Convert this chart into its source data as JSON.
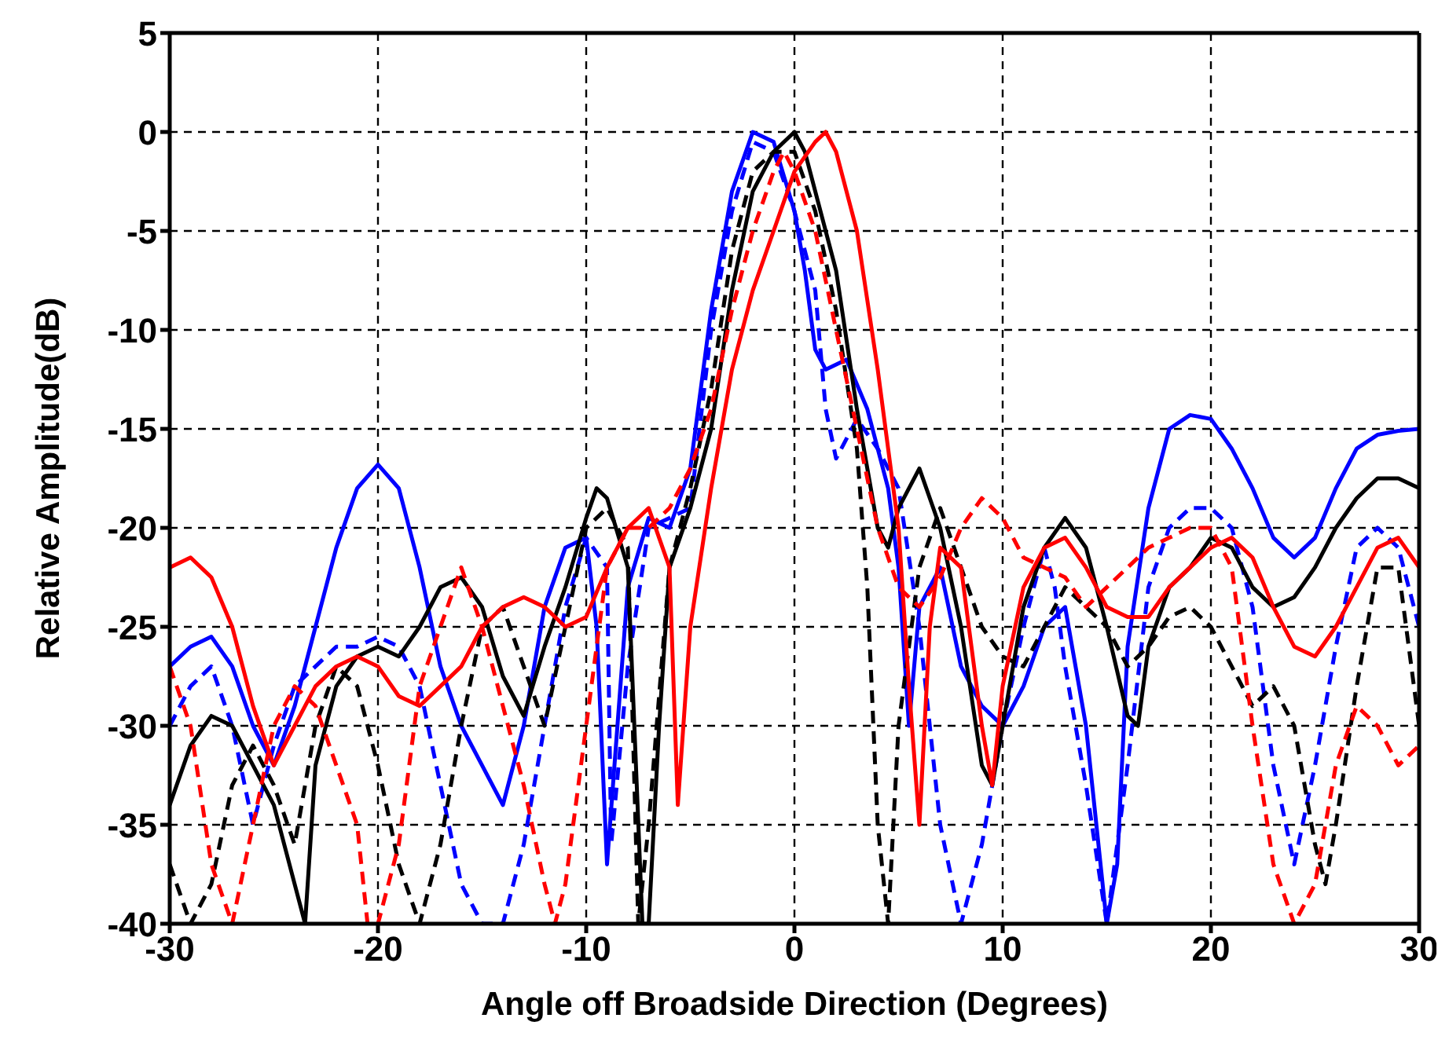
{
  "chart_data": {
    "type": "line",
    "xlabel": "Angle off Broadside Direction (Degrees)",
    "ylabel": "Relative Amplitude(dB)",
    "xlim": [
      -30,
      30
    ],
    "xticks": [
      -30,
      -20,
      -10,
      0,
      10,
      20,
      30
    ],
    "ylim": [
      -40,
      5
    ],
    "yticks": [
      -40,
      -35,
      -30,
      -25,
      -20,
      -15,
      -10,
      -5,
      0,
      5
    ],
    "grid": true,
    "marker": "none",
    "series": [
      {
        "color": "#0000ff",
        "line_style": "solid",
        "x": [
          -30,
          -29,
          -28,
          -27,
          -26,
          -25,
          -24,
          -23,
          -22,
          -21,
          -20,
          -19,
          -18,
          -17,
          -16,
          -15,
          -14,
          -13,
          -12,
          -11,
          -10,
          -9.5,
          -9,
          -8.5,
          -8,
          -7,
          -6,
          -5,
          -4,
          -3,
          -2,
          -1,
          0,
          0.5,
          1,
          1.5,
          2.5,
          3.5,
          4.5,
          5,
          5.5,
          6,
          7,
          8,
          9,
          10,
          11,
          12,
          13,
          14,
          15,
          15.5,
          16,
          17,
          18,
          19,
          20,
          21,
          22,
          23,
          24,
          25,
          26,
          27,
          28,
          29,
          30
        ],
        "values": [
          -27,
          -26,
          -25.5,
          -27,
          -30,
          -32,
          -29,
          -25,
          -21,
          -18,
          -16.8,
          -18,
          -22,
          -27,
          -30,
          -32,
          -34,
          -30,
          -24,
          -21,
          -20.5,
          -25,
          -37,
          -30,
          -23,
          -19.5,
          -20,
          -17,
          -9,
          -3,
          0,
          -0.5,
          -4,
          -7,
          -11,
          -12,
          -11.5,
          -14,
          -18,
          -22,
          -30,
          -24,
          -22,
          -27,
          -29,
          -30,
          -28,
          -25,
          -24,
          -30,
          -40,
          -37,
          -26,
          -19,
          -15,
          -14.3,
          -14.5,
          -16,
          -18,
          -20.5,
          -21.5,
          -20.5,
          -18,
          -16,
          -15.3,
          -15.1,
          -15
        ]
      },
      {
        "color": "#0000ff",
        "line_style": "dashed",
        "x": [
          -30,
          -29,
          -28,
          -27,
          -26,
          -25,
          -24,
          -23,
          -22,
          -21,
          -20,
          -19,
          -18,
          -17,
          -16,
          -15,
          -14,
          -13,
          -12,
          -11,
          -10,
          -9,
          -8.8,
          -8,
          -7,
          -6,
          -5,
          -4,
          -3,
          -2,
          -1,
          -0.5,
          0,
          1,
          1.5,
          2,
          3,
          4,
          5,
          6,
          7,
          8,
          9,
          10,
          11,
          12,
          12.5,
          13,
          14,
          15,
          16,
          17,
          18,
          19,
          20,
          21,
          22,
          23,
          24,
          25,
          26,
          27,
          28,
          29,
          30
        ],
        "values": [
          -30,
          -28,
          -27,
          -30,
          -35,
          -31,
          -28,
          -27,
          -26,
          -26,
          -25.5,
          -26,
          -28,
          -33,
          -38,
          -40,
          -40,
          -36,
          -30,
          -24,
          -20.5,
          -22,
          -36,
          -27,
          -20,
          -19.5,
          -19,
          -10,
          -4,
          -0.5,
          -1,
          -2.5,
          -4,
          -8,
          -14,
          -16.5,
          -14.5,
          -16,
          -18,
          -25,
          -35,
          -40,
          -36,
          -30,
          -25,
          -21,
          -23,
          -27,
          -33,
          -40,
          -32,
          -23,
          -20,
          -19,
          -19,
          -20,
          -24,
          -32,
          -37,
          -32,
          -26,
          -21,
          -20,
          -21,
          -25
        ]
      },
      {
        "color": "#000000",
        "line_style": "solid",
        "x": [
          -30,
          -29,
          -28,
          -27,
          -26,
          -25,
          -24,
          -23.5,
          -23,
          -22,
          -21,
          -20,
          -19,
          -18,
          -17,
          -16,
          -15,
          -14,
          -13,
          -12,
          -11,
          -10,
          -9.5,
          -9,
          -8,
          -7.3,
          -7,
          -6.5,
          -6,
          -5,
          -4,
          -3,
          -2,
          -1,
          0,
          0.5,
          1,
          2,
          3,
          4,
          4.5,
          5,
          6,
          7,
          8,
          9,
          9.5,
          10,
          11,
          12,
          13,
          14,
          15,
          16,
          16.5,
          17,
          18,
          19,
          20,
          21,
          22,
          23,
          24,
          25,
          26,
          27,
          28,
          29,
          30
        ],
        "values": [
          -34,
          -31,
          -29.5,
          -30,
          -32,
          -34,
          -38,
          -40,
          -32,
          -28,
          -26.5,
          -26,
          -26.5,
          -25,
          -23,
          -22.5,
          -24,
          -27.5,
          -29.5,
          -26,
          -23,
          -19.5,
          -18,
          -18.5,
          -22,
          -40,
          -40,
          -30,
          -22,
          -19,
          -15,
          -8,
          -3,
          -1,
          0,
          -1,
          -3,
          -7,
          -14,
          -20,
          -21,
          -19,
          -17,
          -20,
          -25,
          -32,
          -33,
          -30,
          -24,
          -21,
          -19.5,
          -21,
          -25,
          -29.5,
          -30,
          -26,
          -23,
          -22,
          -20.5,
          -21,
          -23,
          -24,
          -23.5,
          -22,
          -20,
          -18.5,
          -17.5,
          -17.5,
          -18
        ]
      },
      {
        "color": "#000000",
        "line_style": "dashed",
        "x": [
          -30,
          -29,
          -28,
          -27,
          -26,
          -25,
          -24,
          -23,
          -22,
          -21,
          -20,
          -19,
          -18,
          -17,
          -16,
          -15,
          -14,
          -13,
          -12,
          -11,
          -10,
          -9,
          -8,
          -7.5,
          -7,
          -6,
          -5,
          -4,
          -3,
          -2,
          -1,
          0,
          1,
          2,
          3,
          3.5,
          4,
          4.5,
          5,
          6,
          7,
          8,
          9,
          10,
          11,
          12,
          13,
          14,
          15,
          16,
          17,
          18,
          19,
          20,
          21,
          22,
          23,
          24,
          25,
          25.5,
          26,
          27,
          28,
          29,
          30
        ],
        "values": [
          -37,
          -40,
          -38,
          -33,
          -31,
          -33,
          -36,
          -30,
          -27,
          -28,
          -32,
          -37,
          -40,
          -36,
          -30,
          -25,
          -24,
          -27,
          -30,
          -25,
          -20,
          -19,
          -21,
          -40,
          -35,
          -22,
          -18,
          -13,
          -6,
          -2,
          -1,
          -1,
          -4,
          -9,
          -16,
          -23,
          -35,
          -40,
          -30,
          -22,
          -19,
          -22,
          -25,
          -26.5,
          -27,
          -25,
          -23,
          -24,
          -25,
          -27,
          -26,
          -24.5,
          -24,
          -25,
          -27,
          -29,
          -28,
          -30,
          -36,
          -38,
          -35,
          -28,
          -22,
          -22,
          -30
        ]
      },
      {
        "color": "#ff0000",
        "line_style": "solid",
        "x": [
          -30,
          -29,
          -28,
          -27,
          -26,
          -25,
          -24,
          -23,
          -22,
          -21,
          -20,
          -19,
          -18,
          -17,
          -16,
          -15,
          -14,
          -13,
          -12,
          -11,
          -10,
          -9,
          -8,
          -7,
          -6,
          -5.6,
          -5,
          -4,
          -3,
          -2,
          -1,
          0,
          1,
          1.5,
          2,
          3,
          4,
          5,
          5.5,
          6,
          6.5,
          7,
          8,
          9,
          9.5,
          10,
          11,
          12,
          13,
          14,
          15,
          16,
          17,
          18,
          19,
          20,
          21,
          22,
          23,
          24,
          25,
          26,
          27,
          28,
          29,
          30
        ],
        "values": [
          -22,
          -21.5,
          -22.5,
          -25,
          -29,
          -32,
          -30,
          -28,
          -27,
          -26.5,
          -27,
          -28.5,
          -29,
          -28,
          -27,
          -25,
          -24,
          -23.5,
          -24,
          -25,
          -24.5,
          -22,
          -20,
          -19,
          -22,
          -34,
          -25,
          -18,
          -12,
          -8,
          -5,
          -2,
          -0.5,
          0,
          -1,
          -5,
          -12,
          -20,
          -28,
          -35,
          -25,
          -21,
          -22,
          -30,
          -33,
          -28,
          -23,
          -21,
          -20.5,
          -22,
          -24,
          -24.5,
          -24.5,
          -23,
          -22,
          -21,
          -20.5,
          -21.5,
          -24,
          -26,
          -26.5,
          -25,
          -23,
          -21,
          -20.5,
          -22
        ]
      },
      {
        "color": "#ff0000",
        "line_style": "dashed",
        "x": [
          -30,
          -29,
          -28,
          -27,
          -26,
          -25,
          -24,
          -23,
          -22,
          -21,
          -20.5,
          -20,
          -19,
          -18,
          -17,
          -16,
          -15,
          -14,
          -13,
          -12,
          -11.5,
          -11,
          -10,
          -9,
          -8,
          -7,
          -6,
          -5,
          -4,
          -3,
          -2,
          -1,
          -0.5,
          0,
          1,
          2,
          3,
          4,
          5,
          6,
          7,
          8,
          9,
          10,
          11,
          12,
          13,
          14,
          15,
          16,
          17,
          18,
          19,
          20,
          21,
          22,
          23,
          24,
          25,
          26,
          27,
          28,
          29,
          30
        ],
        "values": [
          -27,
          -30,
          -37,
          -40,
          -35,
          -30,
          -28,
          -29,
          -32,
          -35,
          -40,
          -40,
          -36,
          -28,
          -25,
          -22,
          -25,
          -29,
          -33,
          -38,
          -40,
          -38,
          -30,
          -22,
          -20,
          -20,
          -19,
          -17,
          -14,
          -9,
          -5,
          -2,
          -1,
          -2,
          -5,
          -10,
          -15,
          -20,
          -23,
          -24,
          -22.5,
          -20,
          -18.5,
          -19.5,
          -21.5,
          -22,
          -22.5,
          -24,
          -23,
          -22,
          -21,
          -20.5,
          -20,
          -20,
          -22,
          -30,
          -37,
          -40,
          -38,
          -32,
          -29,
          -30,
          -32,
          -31
        ]
      }
    ]
  }
}
